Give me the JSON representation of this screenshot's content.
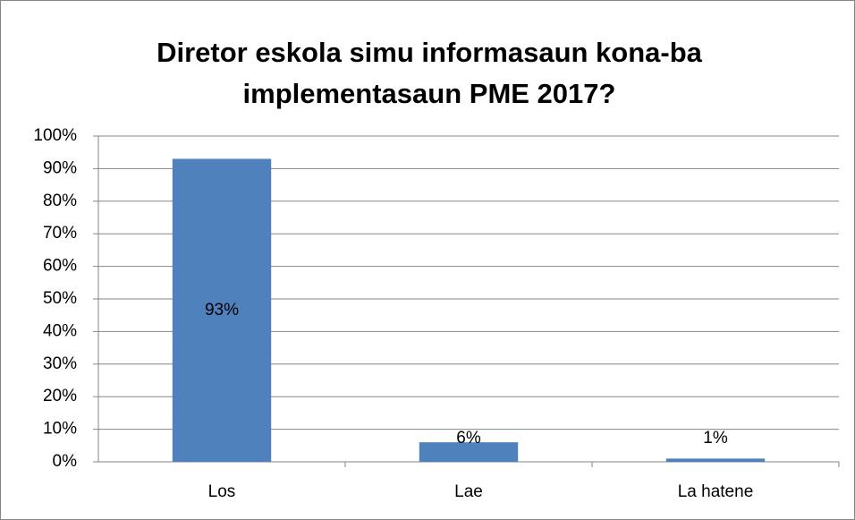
{
  "chart_data": {
    "type": "bar",
    "title": "Diretor eskola simu informasaun kona-ba implementasaun PME 2017?",
    "categories": [
      "Los",
      "Lae",
      "La hatene"
    ],
    "values": [
      93,
      6,
      1
    ],
    "value_labels": [
      "93%",
      "6%",
      "1%"
    ],
    "color": "#4f81bd",
    "ylim": [
      0,
      100
    ],
    "yticks": [
      {
        "value": 0,
        "label": "0%"
      },
      {
        "value": 10,
        "label": "10%"
      },
      {
        "value": 20,
        "label": "20%"
      },
      {
        "value": 30,
        "label": "30%"
      },
      {
        "value": 40,
        "label": "40%"
      },
      {
        "value": 50,
        "label": "50%"
      },
      {
        "value": 60,
        "label": "60%"
      },
      {
        "value": 70,
        "label": "70%"
      },
      {
        "value": 80,
        "label": "80%"
      },
      {
        "value": 90,
        "label": "90%"
      },
      {
        "value": 100,
        "label": "100%"
      }
    ],
    "grid": true
  }
}
